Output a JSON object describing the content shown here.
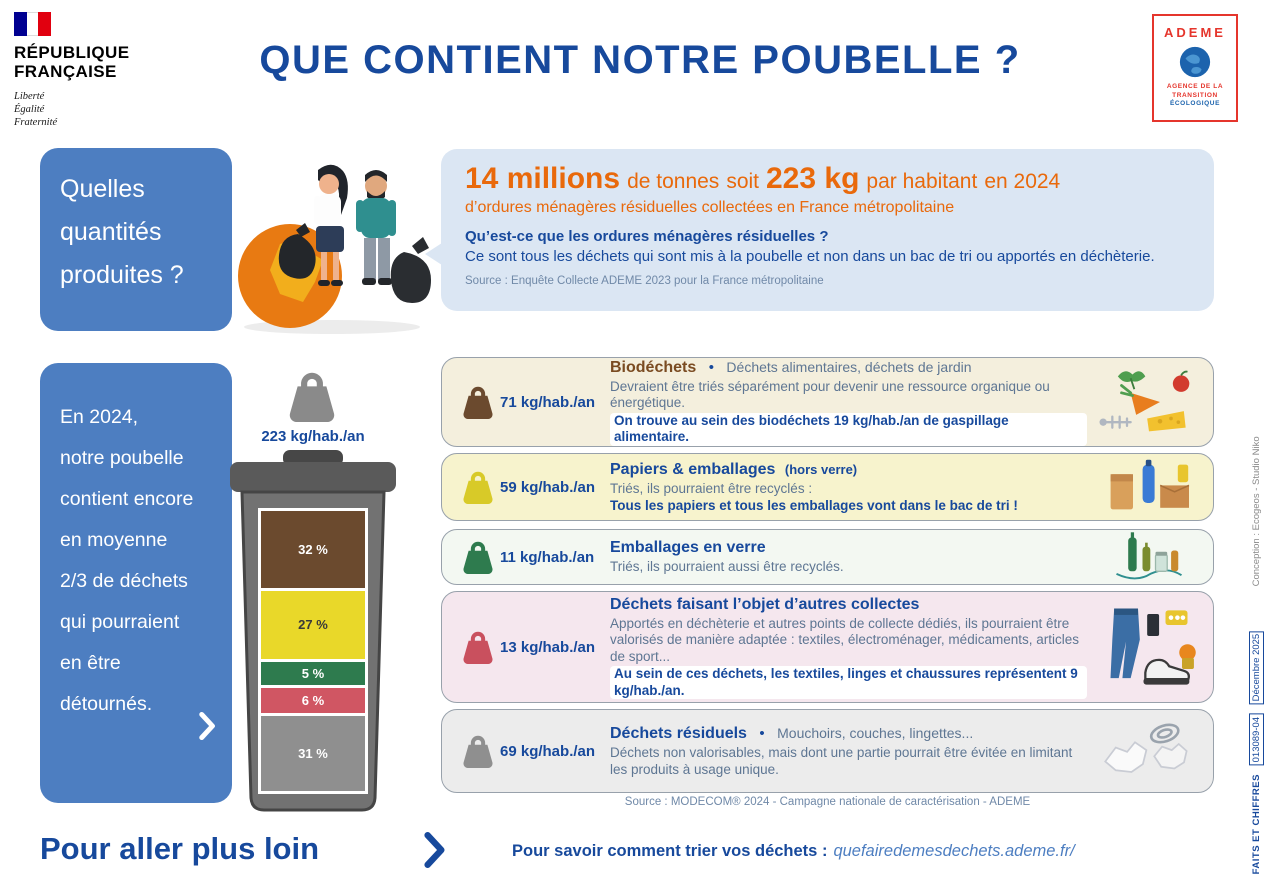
{
  "colors": {
    "dark_blue": "#17499c",
    "panel_blue": "#4d7ec1",
    "orange": "#e9690b",
    "bubble_blue": "#dbe6f3",
    "desc_gray": "#5e7693",
    "source_gray": "#7089a8",
    "ademe_red": "#e5352c"
  },
  "ui": {
    "bullet": "•"
  },
  "page": {
    "title": "QUE CONTIENT NOTRE POUBELLE ?"
  },
  "marianne": {
    "line1": "RÉPUBLIQUE",
    "line2": "FRANÇAISE",
    "motto1": "Liberté",
    "motto2": "Égalité",
    "motto3": "Fraternité"
  },
  "ademe": {
    "name": "ADEME",
    "tagline1": "AGENCE DE LA",
    "tagline2": "TRANSITION",
    "tagline3": "ÉCOLOGIQUE"
  },
  "quantities": {
    "panel_lines": [
      "Quelles",
      "quantités",
      "produites ?"
    ],
    "headline": {
      "big1": "14 millions",
      "txt1": "de tonnes",
      "txt2": "soit",
      "big2": "223 kg",
      "txt3": "par habitant",
      "txt4": "en 2024"
    },
    "subheadline": "d’ordures ménagères résiduelles collectées en France métropolitaine",
    "question": "Qu’est-ce que les ordures ménagères résiduelles ?",
    "answer": "Ce sont tous les déchets qui sont mis à la poubelle et non dans un bac de tri ou apportés en déchèterie.",
    "source": "Source : Enquête Collecte ADEME 2023 pour la France métropolitaine"
  },
  "composition": {
    "panel_lines": [
      "En 2024,",
      "notre poubelle",
      "contient encore",
      "en moyenne",
      "2/3 de déchets",
      "qui pourraient",
      "en être",
      "détournés."
    ],
    "bin_total_label": "223 kg/hab./an",
    "bin_segments": [
      {
        "label": "32 %",
        "value": 32,
        "color": "#6b4a2e",
        "text_color": "#ffffff"
      },
      {
        "label": "27 %",
        "value": 27,
        "color": "#e9d829",
        "text_color": "#3a3a3a"
      },
      {
        "label": "5 %",
        "value": 5,
        "color": "#2e7b4e",
        "text_color": "#ffffff"
      },
      {
        "label": "6 %",
        "value": 6,
        "color": "#d05663",
        "text_color": "#ffffff"
      },
      {
        "label": "31 %",
        "value": 31,
        "color": "#8f8f8f",
        "text_color": "#ffffff"
      }
    ],
    "categories": [
      {
        "weight": "71 kg/hab./an",
        "title": "Biodéchets",
        "title_suffix": "",
        "bullet_text": "Déchets alimentaires, déchets de jardin",
        "desc": "Devraient être triés séparément pour devenir une ressource organique ou énergétique.",
        "bold_line": "On trouve au sein des biodéchets 19 kg/hab./an de gaspillage alimentaire.",
        "bg": "#f4efdd",
        "accent": "#6b4a2e",
        "title_color": "#7a4b21",
        "illustration": "food-waste-illustration"
      },
      {
        "weight": "59 kg/hab./an",
        "title": "Papiers & emballages",
        "title_suffix": "(hors verre)",
        "bullet_text": "",
        "desc": "Triés, ils pourraient être recyclés :",
        "bold_line": "Tous les papiers et tous les emballages vont dans le bac de tri !",
        "bg": "#f7f3cd",
        "accent": "#d8ca28",
        "title_color": "#17499c",
        "illustration": "packaging-illustration"
      },
      {
        "weight": "11 kg/hab./an",
        "title": "Emballages en verre",
        "title_suffix": "",
        "bullet_text": "",
        "desc": "Triés, ils pourraient aussi être recyclés.",
        "bold_line": "",
        "bg": "#f3f8f2",
        "accent": "#2e7b4e",
        "title_color": "#17499c",
        "illustration": "glass-illustration"
      },
      {
        "weight": "13 kg/hab./an",
        "title": "Déchets faisant l’objet d’autres collectes",
        "title_suffix": "",
        "bullet_text": "",
        "desc": "Apportés en déchèterie et autres points de collecte dédiés, ils pourraient être valorisés de manière adaptée : textiles, électroménager, médicaments, articles de sport...",
        "bold_line": "Au sein de ces déchets, les textiles, linges et chaussures représentent 9 kg/hab./an.",
        "bg": "#f5e7ee",
        "accent": "#c9505e",
        "title_color": "#17499c",
        "illustration": "textiles-illustration"
      },
      {
        "weight": "69 kg/hab./an",
        "title": "Déchets résiduels",
        "title_suffix": "",
        "bullet_text": "Mouchoirs, couches, lingettes...",
        "desc": "Déchets non valorisables, mais dont une partie pourrait être évitée en limitant les produits à usage unique.",
        "bold_line": "",
        "bg": "#ececec",
        "accent": "#8f8f8f",
        "title_color": "#17499c",
        "illustration": "residual-illustration"
      }
    ],
    "source": "Source : MODECOM® 2024 - Campagne nationale de caractérisation - ADEME"
  },
  "footer": {
    "title": "Pour aller plus loin",
    "label": "Pour savoir comment trier vos déchets :",
    "link": "quefairedemesdechets.ademe.fr/"
  },
  "edge": {
    "faits": "FAITS ET CHIFFRES",
    "ref": "013089-04",
    "date": "Décembre 2025",
    "conception": "Conception : Ecogeos - Studio Niko"
  }
}
